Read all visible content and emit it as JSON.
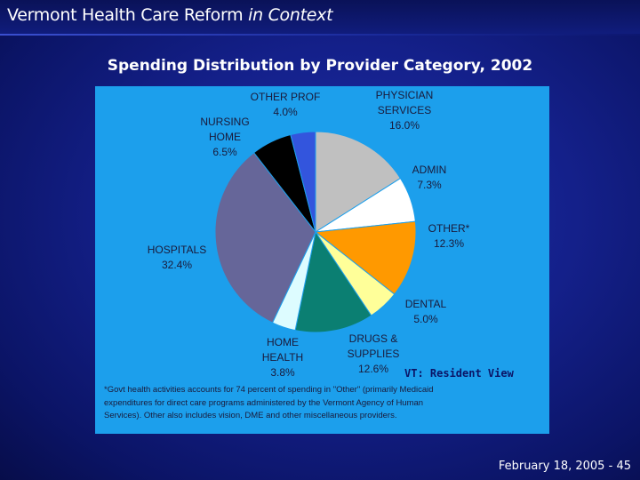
{
  "slide": {
    "title_main": "Vermont Health Care Reform",
    "title_italic": "in Context",
    "footer_date": "February 18, 2005",
    "footer_sep": "-",
    "footer_page": "45"
  },
  "chart_data": {
    "type": "pie",
    "title": "Spending Distribution by Provider Category, 2002",
    "annotation": "VT: Resident View",
    "slices": [
      {
        "name": "PHYSICIAN SERVICES",
        "value": 16.0,
        "label": "16.0%",
        "color": "#c0c0c0"
      },
      {
        "name": "ADMIN",
        "value": 7.3,
        "label": "7.3%",
        "color": "#ffffff"
      },
      {
        "name": "OTHER*",
        "value": 12.3,
        "label": "12.3%",
        "color": "#ff9900"
      },
      {
        "name": "DENTAL",
        "value": 5.0,
        "label": "5.0%",
        "color": "#ffff99"
      },
      {
        "name": "DRUGS & SUPPLIES",
        "value": 12.6,
        "label": "12.6%",
        "color": "#0b7f72"
      },
      {
        "name": "HOME HEALTH",
        "value": 3.8,
        "label": "3.8%",
        "color": "#ddfcff"
      },
      {
        "name": "HOSPITALS",
        "value": 32.4,
        "label": "32.4%",
        "color": "#666699"
      },
      {
        "name": "NURSING HOME",
        "value": 6.5,
        "label": "6.5%",
        "color": "#000000"
      },
      {
        "name": "OTHER PROF",
        "value": 4.0,
        "label": "4.0%",
        "color": "#3355dd"
      }
    ],
    "footnote": [
      "*Govt health activities accounts for 74 percent of spending in \"Other\" (primarily Medicaid",
      "expenditures for direct care programs administered by the Vermont Agency of Human",
      "Services). Other also includes vision, DME and other miscellaneous providers."
    ]
  },
  "colors": {
    "panel": "#1c9fec",
    "slide_background": "#14208a"
  }
}
